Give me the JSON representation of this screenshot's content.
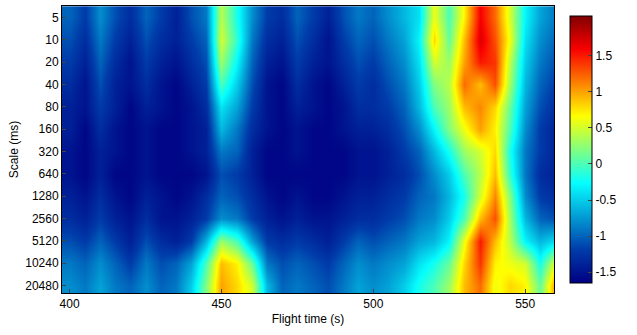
{
  "chart_data": {
    "type": "heatmap",
    "x_label": "Flight time (s)",
    "y_label": "Scale (ms)",
    "color": "Jet",
    "log": "y",
    "xlim": [
      397.5,
      559.5
    ],
    "xticks": [
      400,
      450,
      500,
      550
    ],
    "ylim": [
      25800,
      3.5
    ],
    "yticks": [
      5,
      10,
      20,
      40,
      80,
      160,
      320,
      640,
      1280,
      2560,
      5120,
      10240,
      20480
    ],
    "colorbar_range": [
      -1.65,
      2.05
    ],
    "colorbar_ticks": [
      -1.5,
      -1,
      -0.5,
      0,
      0.5,
      1,
      1.5
    ],
    "x": [
      400,
      405,
      410,
      415,
      420,
      425,
      430,
      435,
      440,
      445,
      450,
      455,
      460,
      465,
      470,
      475,
      480,
      485,
      490,
      495,
      500,
      505,
      510,
      515,
      520,
      525,
      530,
      535,
      540,
      545,
      550,
      555,
      560
    ],
    "y": [
      5,
      10,
      20,
      40,
      80,
      160,
      320,
      640,
      1280,
      2560,
      5120,
      10240,
      20480
    ],
    "cells": [
      [
        -1.0,
        -1.2,
        -0.8,
        -1.1,
        -1.3,
        -1.0,
        -1.2,
        -1.4,
        -1.1,
        -0.9,
        0.4,
        -0.2,
        -0.8,
        -1.2,
        -1.3,
        -1.0,
        -1.2,
        -1.4,
        -1.1,
        -0.9,
        -1.0,
        -0.8,
        -0.6,
        -0.4,
        0.6,
        0.0,
        0.7,
        1.6,
        1.2,
        0.5,
        -0.3,
        -0.7,
        -0.9
      ],
      [
        -1.1,
        -1.3,
        -0.9,
        -1.2,
        -1.4,
        -1.1,
        -1.3,
        -1.4,
        -1.2,
        -1.0,
        0.5,
        -0.1,
        -0.9,
        -1.3,
        -1.4,
        -1.1,
        -1.3,
        -1.5,
        -1.2,
        -1.0,
        -1.1,
        -0.9,
        -0.7,
        -0.3,
        0.8,
        0.1,
        0.9,
        1.7,
        1.3,
        0.6,
        -0.4,
        -0.8,
        -1.0
      ],
      [
        -1.2,
        -1.4,
        -1.0,
        -1.3,
        -1.5,
        -1.2,
        -1.4,
        -1.5,
        -1.3,
        -1.1,
        0.3,
        -0.3,
        -1.0,
        -1.4,
        -1.5,
        -1.2,
        -1.4,
        -1.5,
        -1.3,
        -1.1,
        -1.2,
        -1.0,
        -0.8,
        -0.4,
        0.5,
        0.3,
        1.0,
        1.5,
        1.4,
        0.4,
        -0.5,
        -0.9,
        -1.1
      ],
      [
        -1.3,
        -1.5,
        -1.1,
        -1.4,
        -1.5,
        -1.3,
        -1.5,
        -1.6,
        -1.4,
        -1.2,
        0.0,
        -0.5,
        -1.1,
        -1.5,
        -1.6,
        -1.3,
        -1.5,
        -1.6,
        -1.4,
        -1.2,
        -1.3,
        -1.1,
        -0.9,
        -0.5,
        0.2,
        0.4,
        1.2,
        0.9,
        1.3,
        0.3,
        -0.6,
        -1.0,
        -1.2
      ],
      [
        -1.4,
        -1.5,
        -1.2,
        -1.4,
        -1.6,
        -1.4,
        -1.5,
        -1.6,
        -1.5,
        -1.3,
        -0.4,
        -0.7,
        -1.2,
        -1.5,
        -1.6,
        -1.4,
        -1.5,
        -1.6,
        -1.5,
        -1.3,
        -1.3,
        -1.2,
        -1.0,
        -0.6,
        0.0,
        0.3,
        0.9,
        1.1,
        0.8,
        0.1,
        -0.7,
        -1.1,
        -1.3
      ],
      [
        -1.4,
        -1.6,
        -1.3,
        -1.5,
        -1.6,
        -1.5,
        -1.6,
        -1.6,
        -1.5,
        -1.4,
        -0.6,
        -0.9,
        -1.3,
        -1.5,
        -1.6,
        -1.5,
        -1.6,
        -1.6,
        -1.5,
        -1.4,
        -1.4,
        -1.3,
        -1.1,
        -0.8,
        -0.3,
        0.2,
        0.6,
        1.0,
        0.7,
        0.0,
        -0.8,
        -1.2,
        -1.4
      ],
      [
        -1.5,
        -1.6,
        -1.4,
        -1.5,
        -1.6,
        -1.5,
        -1.6,
        -1.6,
        -1.5,
        -1.4,
        -0.9,
        -1.0,
        -1.4,
        -1.6,
        -1.6,
        -1.5,
        -1.6,
        -1.6,
        -1.6,
        -1.5,
        -1.5,
        -1.4,
        -1.2,
        -1.0,
        -0.6,
        -0.2,
        0.3,
        0.5,
        0.8,
        -0.2,
        -0.9,
        -1.2,
        -1.4
      ],
      [
        -1.5,
        -1.6,
        -1.4,
        -1.6,
        -1.6,
        -1.5,
        -1.6,
        -1.6,
        -1.6,
        -1.5,
        -1.1,
        -1.2,
        -1.4,
        -1.6,
        -1.6,
        -1.6,
        -1.6,
        -1.6,
        -1.6,
        -1.5,
        -1.5,
        -1.4,
        -1.3,
        -1.1,
        -0.8,
        -0.5,
        0.0,
        0.4,
        0.9,
        -0.1,
        -0.9,
        -1.3,
        -1.4
      ],
      [
        -1.4,
        -1.5,
        -1.3,
        -1.5,
        -1.6,
        -1.4,
        -1.5,
        -1.6,
        -1.5,
        -1.3,
        -1.0,
        -1.1,
        -1.3,
        -1.5,
        -1.6,
        -1.5,
        -1.6,
        -1.6,
        -1.5,
        -1.4,
        -1.4,
        -1.3,
        -1.2,
        -1.0,
        -0.9,
        -0.6,
        -0.2,
        0.5,
        1.1,
        0.2,
        -0.8,
        -1.2,
        -1.3
      ],
      [
        -1.3,
        -1.4,
        -1.2,
        -1.4,
        -1.5,
        -1.3,
        -1.5,
        -1.5,
        -1.4,
        -1.2,
        -0.8,
        -0.9,
        -1.2,
        -1.4,
        -1.5,
        -1.4,
        -1.5,
        -1.5,
        -1.4,
        -1.3,
        -1.3,
        -1.2,
        -1.1,
        -0.9,
        -0.8,
        -0.5,
        0.0,
        0.9,
        1.3,
        0.3,
        -0.6,
        -1.0,
        -1.1
      ],
      [
        -1.1,
        -1.2,
        -1.0,
        -1.2,
        -1.4,
        -1.1,
        -1.3,
        -1.4,
        -1.2,
        -0.6,
        0.3,
        0.0,
        -0.7,
        -1.2,
        -1.3,
        -1.2,
        -1.3,
        -1.4,
        -1.2,
        -1.0,
        -1.1,
        -1.0,
        -0.9,
        -0.7,
        -0.6,
        -0.3,
        0.6,
        1.5,
        0.9,
        0.4,
        -0.3,
        -0.6,
        -0.4
      ],
      [
        -0.9,
        -1.0,
        -0.8,
        -1.0,
        -1.2,
        -0.9,
        -1.1,
        -1.0,
        -0.7,
        0.0,
        0.9,
        0.7,
        0.1,
        -0.9,
        -1.1,
        -1.0,
        -1.1,
        -1.2,
        -1.0,
        -0.8,
        -0.9,
        -0.8,
        -0.7,
        -0.4,
        -0.2,
        0.1,
        0.8,
        1.4,
        0.7,
        0.6,
        0.5,
        -0.2,
        0.6
      ],
      [
        -0.8,
        -0.9,
        -0.7,
        -0.9,
        -1.0,
        -0.8,
        -1.0,
        -0.9,
        -0.5,
        0.2,
        1.0,
        0.8,
        0.5,
        -0.6,
        -1.0,
        -0.9,
        -1.0,
        -1.1,
        -0.9,
        -0.7,
        -0.8,
        -0.7,
        -0.5,
        -0.2,
        0.0,
        0.3,
        0.9,
        1.2,
        0.6,
        0.8,
        0.7,
        0.1,
        1.1
      ]
    ]
  }
}
